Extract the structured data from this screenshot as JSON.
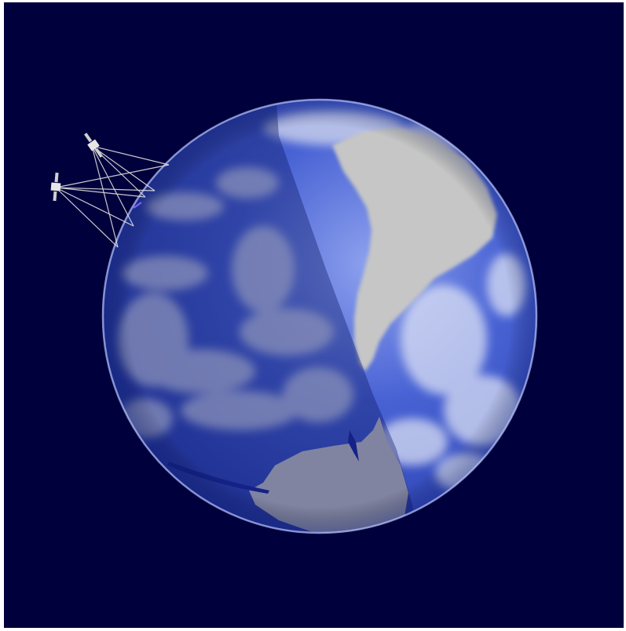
{
  "scene": {
    "background_color": "#00003c",
    "frame_color": "#ffffff",
    "subject": "earth-globe",
    "ocean_color": "#3a55c8",
    "ocean_light_color": "#7d93e6",
    "cloud_color": "#d7dcef",
    "continent_color": "#c8c8c8",
    "night_shade_color": "#0a1460",
    "satellite_color": "#e6e6e6",
    "satellites": [
      {
        "icon": "satellite-icon"
      },
      {
        "icon": "satellite-icon"
      }
    ]
  }
}
